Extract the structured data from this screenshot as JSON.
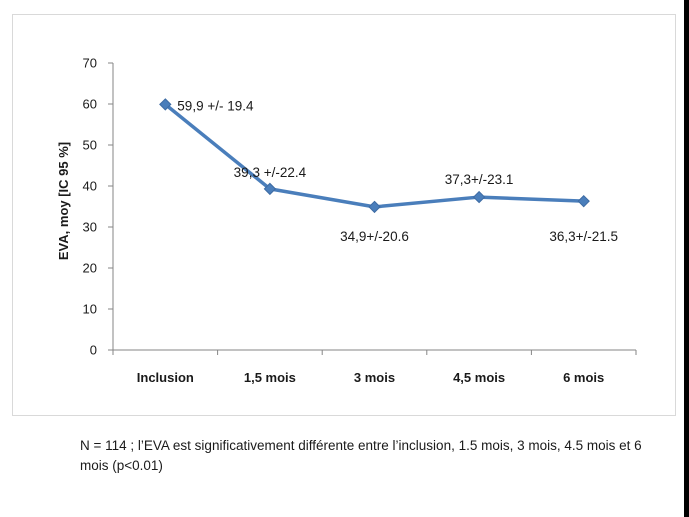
{
  "chart_data": {
    "type": "line",
    "categories": [
      "Inclusion",
      "1,5 mois",
      "3 mois",
      "4,5 mois",
      "6 mois"
    ],
    "series": [
      {
        "values": [
          59.9,
          39.3,
          34.9,
          37.3,
          36.3
        ],
        "color": "#4a7ebb"
      }
    ],
    "data_labels": [
      "59,9 +/- 19.4",
      "39,3 +/-22.4",
      "34,9+/-20.6",
      "37,3+/-23.1",
      "36,3+/-21.5"
    ],
    "ylabel": "EVA, moy [IC 95 %]",
    "xlabel": "",
    "ylim": [
      0,
      70
    ],
    "yticks": [
      0,
      10,
      20,
      30,
      40,
      50,
      60,
      70
    ],
    "grid": false,
    "legend": "none"
  },
  "footnote": "N = 114 ; l’EVA est significativement différente entre l’inclusion, 1.5 mois, 3 mois, 4.5 mois et 6 mois (p<0.01)"
}
